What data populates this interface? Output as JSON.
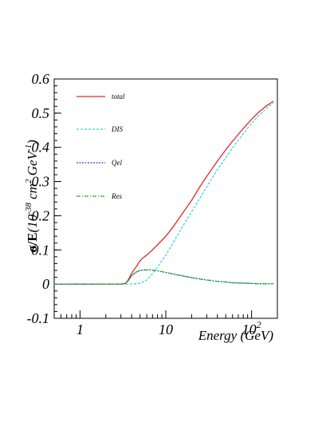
{
  "chart_data": {
    "type": "line",
    "xlabel": "Energy (GeV)",
    "ylabel_main": "σ/E",
    "ylabel_unit_prefix": "(10",
    "ylabel_exp1": "-38",
    "ylabel_mid": " cm",
    "ylabel_exp2": "2",
    "ylabel_mid2": " GeV",
    "ylabel_exp3": "-1",
    "ylabel_close": ")",
    "x_scale": "log",
    "xlim": [
      0.5,
      200
    ],
    "ylim": [
      -0.1,
      0.6
    ],
    "x_ticks": [
      {
        "value": 1,
        "base": "1",
        "exp": ""
      },
      {
        "value": 10,
        "base": "10",
        "exp": ""
      },
      {
        "value": 100,
        "base": "10",
        "exp": "2"
      }
    ],
    "y_ticks": [
      {
        "value": -0.1,
        "label": "-0.1"
      },
      {
        "value": 0,
        "label": "0"
      },
      {
        "value": 0.1,
        "label": "0.1"
      },
      {
        "value": 0.2,
        "label": "0.2"
      },
      {
        "value": 0.3,
        "label": "0.3"
      },
      {
        "value": 0.4,
        "label": "0.4"
      },
      {
        "value": 0.5,
        "label": "0.5"
      },
      {
        "value": 0.6,
        "label": "0.6"
      }
    ],
    "grid": false,
    "legend_position": "top-left",
    "series": [
      {
        "name": "total",
        "color": "#e8262a",
        "dash": "",
        "x": [
          0.5,
          1,
          2,
          3,
          3.4,
          3.7,
          4,
          4.5,
          5,
          5.5,
          6,
          7,
          8,
          10,
          12,
          15,
          20,
          25,
          30,
          40,
          50,
          60,
          80,
          100,
          120,
          150,
          180
        ],
        "y": [
          0,
          0,
          0,
          0,
          0.002,
          0.015,
          0.032,
          0.05,
          0.068,
          0.078,
          0.085,
          0.1,
          0.115,
          0.14,
          0.165,
          0.2,
          0.245,
          0.285,
          0.315,
          0.36,
          0.393,
          0.418,
          0.455,
          0.482,
          0.502,
          0.522,
          0.535
        ]
      },
      {
        "name": "DIS",
        "color": "#33d6d6",
        "dash": "3,2",
        "x": [
          0.5,
          1,
          2,
          3,
          4,
          5,
          6,
          7,
          8,
          10,
          12,
          15,
          20,
          25,
          30,
          40,
          50,
          60,
          80,
          100,
          120,
          150,
          180
        ],
        "y": [
          0,
          0,
          0,
          0,
          0,
          0.002,
          0.012,
          0.03,
          0.05,
          0.085,
          0.118,
          0.16,
          0.212,
          0.252,
          0.285,
          0.335,
          0.37,
          0.398,
          0.44,
          0.47,
          0.492,
          0.515,
          0.53
        ]
      },
      {
        "name": "Qel",
        "color": "#3a3ad4",
        "dash": "2,1.5",
        "x": [
          0.5,
          1,
          2,
          3,
          3.4,
          3.7,
          4,
          4.5,
          5,
          6,
          7,
          8,
          10,
          12,
          15,
          20,
          25,
          30,
          40,
          50,
          60,
          80,
          100,
          120,
          150,
          180
        ],
        "y": [
          0,
          0,
          0,
          0,
          0.002,
          0.012,
          0.025,
          0.035,
          0.04,
          0.042,
          0.041,
          0.039,
          0.034,
          0.03,
          0.025,
          0.019,
          0.015,
          0.012,
          0.008,
          0.006,
          0.004,
          0.003,
          0.002,
          0.001,
          0.001,
          0.001
        ]
      },
      {
        "name": "Res",
        "color": "#1fb81f",
        "dash": "5,2,1,2",
        "x": [
          0.5,
          1,
          2,
          3,
          3.4,
          3.7,
          4,
          4.5,
          5,
          6,
          7,
          8,
          10,
          12,
          15,
          20,
          25,
          30,
          40,
          50,
          60,
          80,
          100,
          120,
          150,
          180
        ],
        "y": [
          0,
          0,
          0,
          0,
          0.002,
          0.012,
          0.025,
          0.035,
          0.04,
          0.042,
          0.041,
          0.039,
          0.034,
          0.03,
          0.025,
          0.019,
          0.015,
          0.012,
          0.008,
          0.006,
          0.004,
          0.003,
          0.002,
          0.001,
          0.001,
          0.001
        ]
      }
    ]
  }
}
